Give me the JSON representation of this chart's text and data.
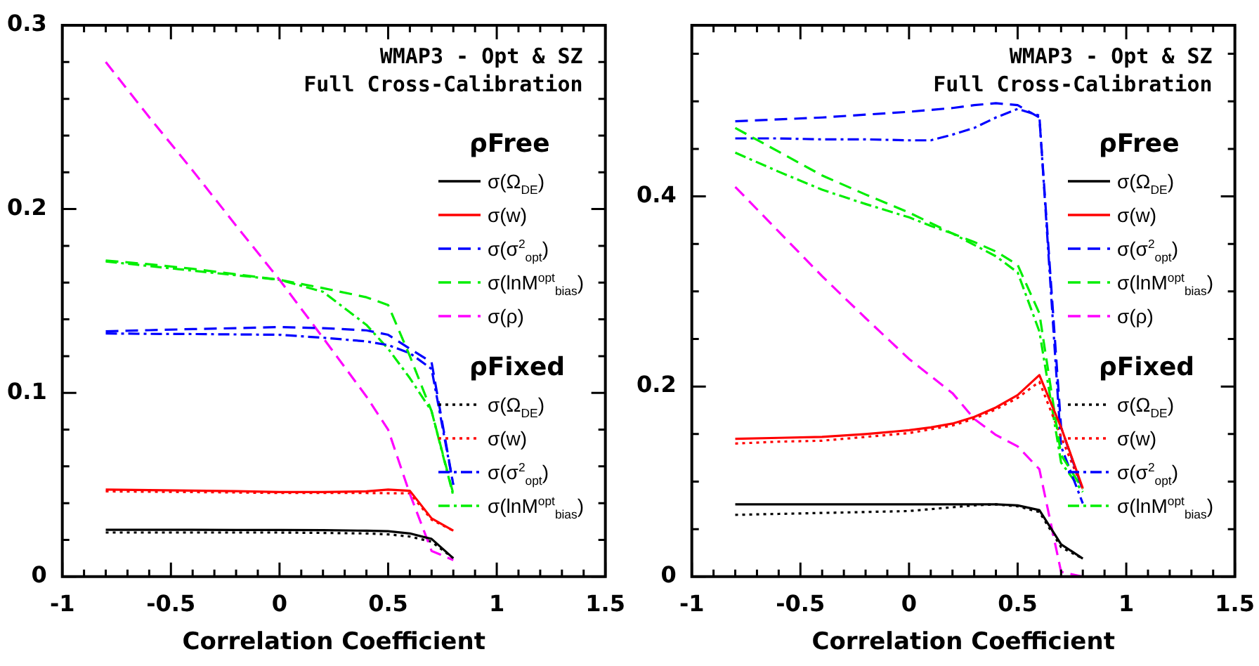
{
  "chart_data": [
    {
      "type": "line",
      "title": "WMAP3 - Opt & SZ",
      "subtitle": "Full Cross-Calibration",
      "xlabel": "Correlation Coefficient",
      "legend_title": "ρFree",
      "annotations": [
        "ρFixed"
      ],
      "legend": "right",
      "marker": "none",
      "xlim": [
        -1,
        1.5
      ],
      "ylim": [
        0,
        0.3
      ],
      "xticks": [
        -1,
        {
          "value": -0.9,
          "label": null
        },
        {
          "value": -0.8,
          "label": null
        },
        {
          "value": -0.7,
          "label": null
        },
        {
          "value": -0.6,
          "label": null
        },
        -0.5,
        {
          "value": -0.4,
          "label": null
        },
        {
          "value": -0.3,
          "label": null
        },
        {
          "value": -0.2,
          "label": null
        },
        {
          "value": -0.1,
          "label": null
        },
        0,
        {
          "value": 0.1,
          "label": null
        },
        {
          "value": 0.2,
          "label": null
        },
        {
          "value": 0.3,
          "label": null
        },
        {
          "value": 0.4,
          "label": null
        },
        0.5,
        {
          "value": 0.6,
          "label": null
        },
        {
          "value": 0.7,
          "label": null
        },
        {
          "value": 0.8,
          "label": null
        },
        {
          "value": 0.9,
          "label": null
        },
        1,
        {
          "value": 1.1,
          "label": null
        },
        {
          "value": 1.2,
          "label": null
        },
        {
          "value": 1.3,
          "label": null
        },
        {
          "value": 1.4,
          "label": null
        },
        1.5
      ],
      "yticks": [
        0,
        {
          "value": 0.02,
          "label": null
        },
        {
          "value": 0.04,
          "label": null
        },
        {
          "value": 0.06,
          "label": null
        },
        {
          "value": 0.08,
          "label": null
        },
        0.1,
        {
          "value": 0.12,
          "label": null
        },
        {
          "value": 0.14,
          "label": null
        },
        {
          "value": 0.16,
          "label": null
        },
        {
          "value": 0.18,
          "label": null
        },
        0.2,
        {
          "value": 0.22,
          "label": null
        },
        {
          "value": 0.24,
          "label": null
        },
        {
          "value": 0.26,
          "label": null
        },
        {
          "value": 0.28,
          "label": null
        },
        0.3
      ],
      "x": [
        -0.8,
        -0.6,
        -0.4,
        -0.2,
        0,
        0.2,
        0.4,
        0.5,
        0.6,
        0.7,
        0.8
      ],
      "series": [
        {
          "name": "σ(Ω$_{DE}$)",
          "color": "#000000",
          "line_style": "solid",
          "values": [
            0.0255,
            0.0255,
            0.0255,
            0.0254,
            0.0254,
            0.0253,
            0.025,
            0.0247,
            0.0235,
            0.0205,
            0.01
          ]
        },
        {
          "name": "σ(w)",
          "color": "#ff0000",
          "line_style": "solid",
          "values": [
            0.0474,
            0.0471,
            0.0468,
            0.0465,
            0.046,
            0.046,
            0.0464,
            0.0474,
            0.0467,
            0.0317,
            0.025
          ]
        },
        {
          "name": "σ(σ$^{2}$$_{opt}$)",
          "color": "#0000ff",
          "line_style": "dashed",
          "values": [
            0.1335,
            0.1341,
            0.1347,
            0.1352,
            0.1358,
            0.1352,
            0.134,
            0.1316,
            0.124,
            0.1166,
            0.05
          ]
        },
        {
          "name": "σ(lnM$^{opt}$$_{bias}$)",
          "color": "#00ee00",
          "line_style": "dashed",
          "values": [
            0.172,
            0.17,
            0.1675,
            0.1645,
            0.1615,
            0.157,
            0.152,
            0.1478,
            0.12,
            0.09,
            0.045
          ]
        },
        {
          "name": "σ(ρ)",
          "color": "#ff00ff",
          "line_style": "dashed",
          "values": [
            0.28,
            0.25,
            0.221,
            0.191,
            0.1615,
            0.13,
            0.098,
            0.08,
            0.045,
            0.014,
            0.009
          ]
        },
        {
          "name": "σ(Ω$_{DE}$)",
          "color": "#000000",
          "line_style": "dotted",
          "values": [
            0.024,
            0.024,
            0.024,
            0.024,
            0.024,
            0.0238,
            0.0235,
            0.023,
            0.0218,
            0.019,
            0.01
          ]
        },
        {
          "name": "σ(w)",
          "color": "#ff0000",
          "line_style": "dotted",
          "values": [
            0.0464,
            0.0462,
            0.046,
            0.0458,
            0.0455,
            0.0455,
            0.0455,
            0.0454,
            0.0454,
            0.031,
            0.025
          ]
        },
        {
          "name": "σ(σ$^{2}$$_{opt}$)",
          "color": "#0000ff",
          "line_style": "dashdot",
          "values": [
            0.1323,
            0.1321,
            0.132,
            0.1318,
            0.1316,
            0.13,
            0.128,
            0.126,
            0.1216,
            0.113,
            0.05
          ]
        },
        {
          "name": "σ(lnM$^{opt}$$_{bias}$)",
          "color": "#00ee00",
          "line_style": "dashdot",
          "values": [
            0.1715,
            0.169,
            0.1665,
            0.164,
            0.1615,
            0.155,
            0.137,
            0.124,
            0.108,
            0.09,
            0.044
          ]
        }
      ]
    },
    {
      "type": "line",
      "title": "WMAP3 - Opt & SZ",
      "subtitle": "Full Cross-Calibration",
      "xlabel": "Correlation Coefficient",
      "legend_title": "ρFree",
      "annotations": [
        "ρFixed"
      ],
      "legend": "right",
      "marker": "none",
      "xlim": [
        -1,
        1.5
      ],
      "ylim": [
        0,
        0.58
      ],
      "xticks": [
        -1,
        {
          "value": -0.9,
          "label": null
        },
        {
          "value": -0.8,
          "label": null
        },
        {
          "value": -0.7,
          "label": null
        },
        {
          "value": -0.6,
          "label": null
        },
        -0.5,
        {
          "value": -0.4,
          "label": null
        },
        {
          "value": -0.3,
          "label": null
        },
        {
          "value": -0.2,
          "label": null
        },
        {
          "value": -0.1,
          "label": null
        },
        0,
        {
          "value": 0.1,
          "label": null
        },
        {
          "value": 0.2,
          "label": null
        },
        {
          "value": 0.3,
          "label": null
        },
        {
          "value": 0.4,
          "label": null
        },
        0.5,
        {
          "value": 0.6,
          "label": null
        },
        {
          "value": 0.7,
          "label": null
        },
        {
          "value": 0.8,
          "label": null
        },
        {
          "value": 0.9,
          "label": null
        },
        1,
        {
          "value": 1.1,
          "label": null
        },
        {
          "value": 1.2,
          "label": null
        },
        {
          "value": 1.3,
          "label": null
        },
        {
          "value": 1.4,
          "label": null
        },
        1.5
      ],
      "yticks": [
        0,
        {
          "value": 0.05,
          "label": null
        },
        {
          "value": 0.1,
          "label": null
        },
        {
          "value": 0.15,
          "label": null
        },
        0.2,
        {
          "value": 0.25,
          "label": null
        },
        {
          "value": 0.3,
          "label": null
        },
        {
          "value": 0.35,
          "label": null
        },
        0.4,
        {
          "value": 0.45,
          "label": null
        },
        {
          "value": 0.5,
          "label": null
        },
        {
          "value": 0.55,
          "label": null
        }
      ],
      "x": [
        -0.8,
        -0.6,
        -0.4,
        -0.2,
        0,
        0.1,
        0.2,
        0.3,
        0.4,
        0.5,
        0.6,
        0.7,
        0.8
      ],
      "series": [
        {
          "name": "σ(Ω$_{DE}$)",
          "color": "#000000",
          "line_style": "solid",
          "values": [
            0.076,
            0.076,
            0.076,
            0.076,
            0.076,
            0.076,
            0.076,
            0.076,
            0.076,
            0.075,
            0.07,
            0.034,
            0.019
          ]
        },
        {
          "name": "σ(w)",
          "color": "#ff0000",
          "line_style": "solid",
          "values": [
            0.145,
            0.146,
            0.147,
            0.15,
            0.154,
            0.157,
            0.161,
            0.168,
            0.178,
            0.191,
            0.212,
            0.157,
            0.093
          ]
        },
        {
          "name": "σ(σ$^{2}$$_{opt}$)",
          "color": "#0000ff",
          "line_style": "dashed",
          "values": [
            0.479,
            0.481,
            0.483,
            0.486,
            0.489,
            0.491,
            0.493,
            0.496,
            0.498,
            0.496,
            0.483,
            0.157,
            0.091
          ]
        },
        {
          "name": "σ(lnM$^{opt}$$_{bias}$)",
          "color": "#00ee00",
          "line_style": "dashed",
          "values": [
            0.472,
            0.447,
            0.422,
            0.402,
            0.383,
            0.372,
            0.361,
            0.352,
            0.342,
            0.328,
            0.277,
            0.128,
            0.092
          ]
        },
        {
          "name": "σ(ρ)",
          "color": "#ff00ff",
          "line_style": "dashed",
          "values": [
            0.41,
            0.363,
            0.316,
            0.272,
            0.229,
            0.211,
            0.193,
            0.166,
            0.149,
            0.137,
            0.113,
            0.005,
            0
          ]
        },
        {
          "name": "σ(Ω$_{DE}$)",
          "color": "#000000",
          "line_style": "dotted",
          "values": [
            0.065,
            0.066,
            0.067,
            0.068,
            0.069,
            0.071,
            0.073,
            0.075,
            0.076,
            0.074,
            0.068,
            0.031,
            0.019
          ]
        },
        {
          "name": "σ(w)",
          "color": "#ff0000",
          "line_style": "dotted",
          "values": [
            0.14,
            0.142,
            0.143,
            0.147,
            0.151,
            0.155,
            0.159,
            0.166,
            0.176,
            0.188,
            0.205,
            0.147,
            0.092
          ]
        },
        {
          "name": "σ(σ$^{2}$$_{opt}$)",
          "color": "#0000ff",
          "line_style": "dashdot",
          "values": [
            0.461,
            0.461,
            0.46,
            0.46,
            0.459,
            0.459,
            0.465,
            0.472,
            0.483,
            0.492,
            0.485,
            0.137,
            0.077
          ]
        },
        {
          "name": "σ(lnM$^{opt}$$_{bias}$)",
          "color": "#00ee00",
          "line_style": "dashdot",
          "values": [
            0.446,
            0.426,
            0.407,
            0.392,
            0.378,
            0.369,
            0.361,
            0.349,
            0.337,
            0.32,
            0.258,
            0.12,
            0.089
          ]
        }
      ]
    }
  ]
}
